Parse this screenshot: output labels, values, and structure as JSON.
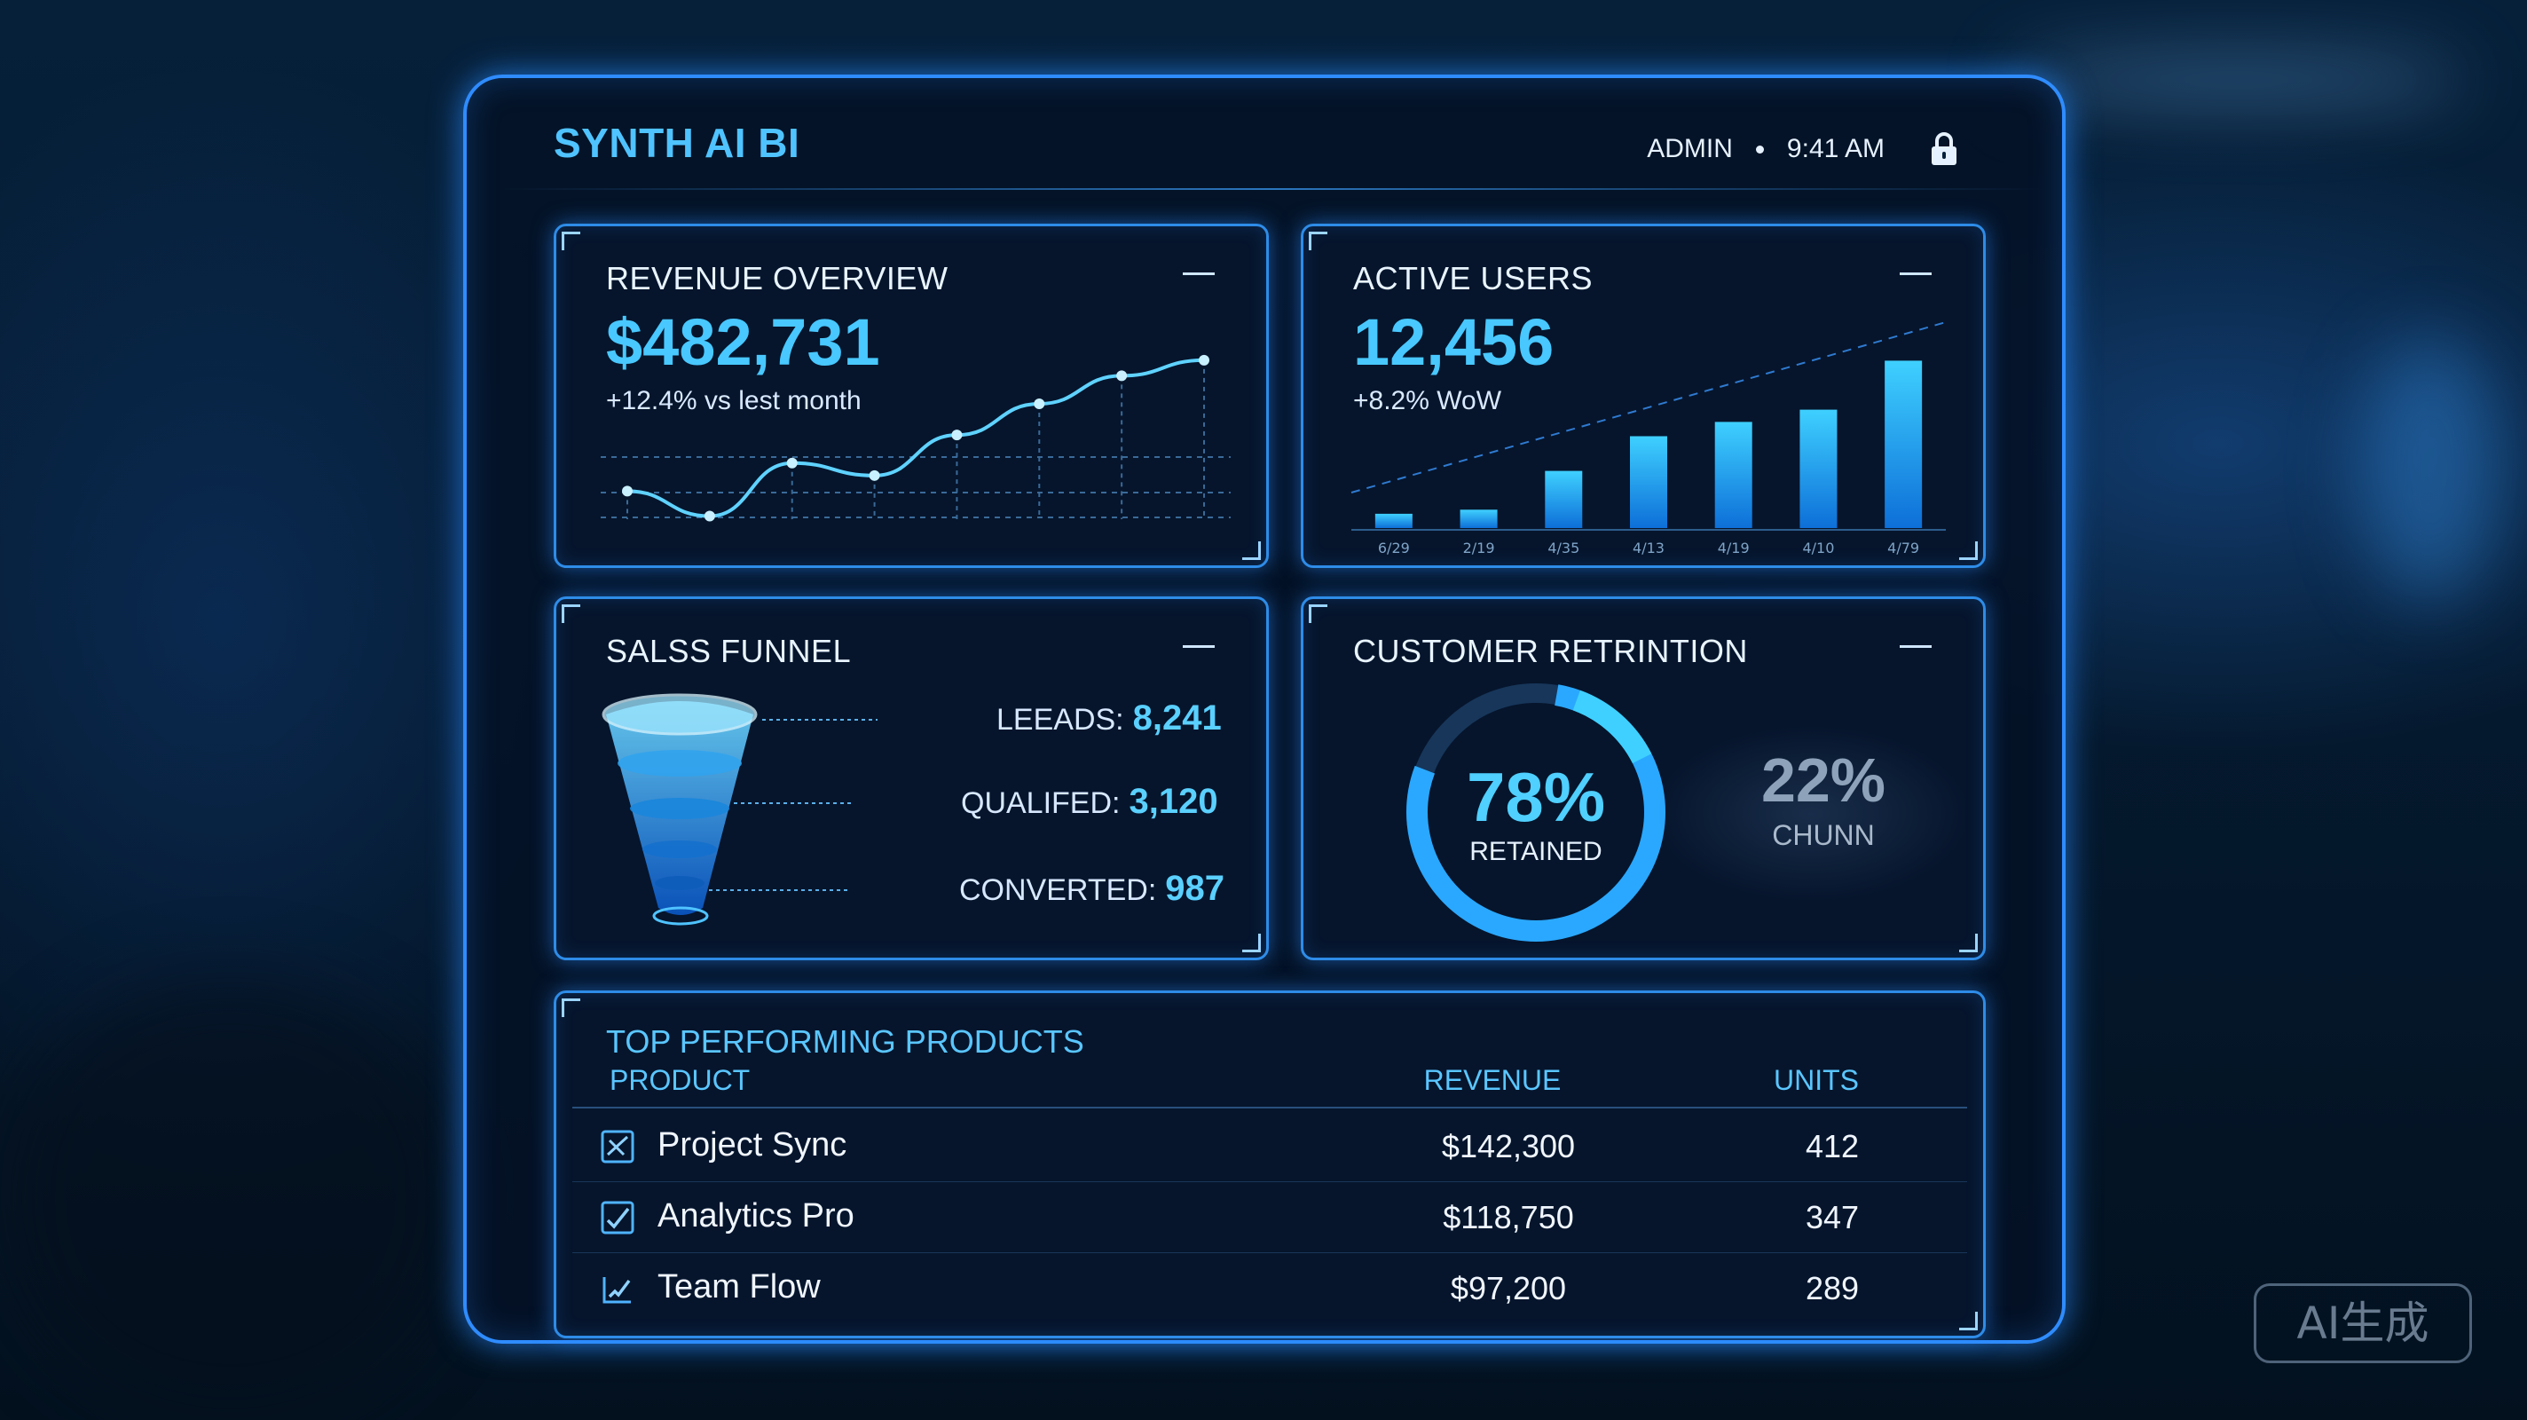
{
  "app": {
    "title": "SYNTH AI BI",
    "user": "ADMIN",
    "time": "9:41 AM"
  },
  "icons": {
    "lock": "lock-icon",
    "minimize": "minimize-icon",
    "product_1": "sync-icon",
    "product_2": "analytics-icon",
    "product_3": "team-flow-icon"
  },
  "colors": {
    "accent": "#2f8cff",
    "value": "#48c8ff",
    "background": "#051a30"
  },
  "revenue": {
    "title": "REVENUE OVERVIEW",
    "value": "$482,731",
    "delta": "+12.4% vs lest month"
  },
  "users": {
    "title": "ACTIVE USERS",
    "value": "12,456",
    "delta": "+8.2% WoW"
  },
  "funnel": {
    "title": "SALSS FUNNEL",
    "leads_label": "LEEADS:",
    "leads_value": "8,241",
    "qualified_label": "QUALIFED:",
    "qualified_value": "3,120",
    "converted_label": "CONVERTED:",
    "converted_value": "987"
  },
  "retention": {
    "title": "CUSTOMER RETRINTION",
    "retained_pct": "78%",
    "retained_label": "RETAINED",
    "churn_pct": "22%",
    "churn_label": "CHUNN",
    "retained_fraction": 0.78
  },
  "products": {
    "title": "TOP PERFORMING PRODUCTS",
    "col_product": "PRODUCT",
    "col_revenue": "REVENUE",
    "col_units": "UNITS",
    "rows": [
      {
        "name": "Project Sync",
        "revenue": "$142,300",
        "units": "412"
      },
      {
        "name": "Analytics Pro",
        "revenue": "$118,750",
        "units": "347"
      },
      {
        "name": "Team Flow",
        "revenue": "$97,200",
        "units": "289"
      }
    ]
  },
  "chart_data": [
    {
      "type": "line",
      "x": [
        1,
        2,
        3,
        4,
        5,
        6,
        7,
        8
      ],
      "values": [
        18,
        2,
        36,
        28,
        54,
        74,
        92,
        102
      ],
      "ylim": [
        0,
        115
      ]
    },
    {
      "type": "bar",
      "categories": [
        "6/29",
        "2/19",
        "4/35",
        "4/13",
        "4/19",
        "4/10",
        "4/79"
      ],
      "values": [
        7,
        9,
        28,
        45,
        52,
        58,
        82
      ],
      "ylim": [
        0,
        100
      ]
    }
  ],
  "watermark": "AI生成"
}
